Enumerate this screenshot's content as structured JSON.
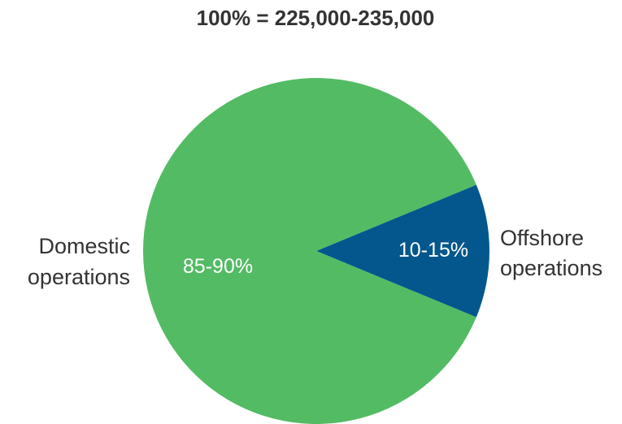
{
  "chart_data": {
    "type": "pie",
    "title": "100% = 225,000-235,000",
    "slices": [
      {
        "label_lines": [
          "Offshore",
          "operations"
        ],
        "value_label": "10-15%",
        "value": 12.5,
        "color": "#03578c"
      },
      {
        "label_lines": [
          "Domestic",
          "operations"
        ],
        "value_label": "85-90%",
        "value": 87.5,
        "color": "#53bb64"
      }
    ],
    "legend": "none"
  }
}
